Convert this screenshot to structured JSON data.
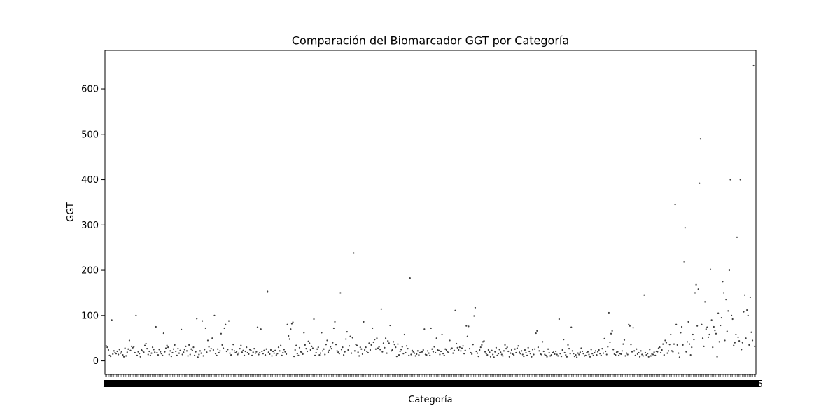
{
  "chart_data": {
    "type": "scatter",
    "title": "Comparación del Biomarcador GGT por Categoría",
    "xlabel": "Categoría",
    "ylabel": "GGT",
    "ylim": [
      -30,
      685
    ],
    "yticks": [
      0,
      100,
      200,
      300,
      400,
      500,
      600
    ],
    "ytick_labels": [
      "0",
      "100",
      "200",
      "300",
      "400",
      "500",
      "600"
    ],
    "grid": false,
    "x_category_count": 545,
    "x_first_tick_label": "2",
    "x_last_tick_label": "45",
    "marker_color": "#3d3d3d",
    "series": [
      {
        "values": [
          33,
          30,
          24,
          12,
          10,
          90,
          15,
          22,
          18,
          16,
          21,
          14,
          25,
          17,
          20,
          13,
          9,
          28,
          11,
          19,
          26,
          45,
          23,
          32,
          29,
          31,
          18,
          100,
          12,
          20,
          16,
          9,
          24,
          22,
          19,
          34,
          38,
          27,
          14,
          21,
          12,
          17,
          30,
          25,
          19,
          75,
          18,
          13,
          25,
          20,
          16,
          12,
          61,
          20,
          28,
          34,
          30,
          14,
          22,
          10,
          18,
          26,
          35,
          21,
          12,
          27,
          17,
          23,
          69,
          14,
          19,
          25,
          32,
          22,
          11,
          35,
          14,
          26,
          23,
          30,
          12,
          20,
          93,
          8,
          14,
          22,
          17,
          88,
          11,
          25,
          72,
          19,
          45,
          31,
          22,
          27,
          50,
          24,
          100,
          16,
          12,
          26,
          18,
          22,
          60,
          35,
          28,
          72,
          80,
          21,
          25,
          88,
          17,
          13,
          25,
          36,
          22,
          18,
          20,
          14,
          17,
          27,
          34,
          19,
          23,
          12,
          21,
          30,
          18,
          15,
          25,
          23,
          12,
          19,
          27,
          17,
          20,
          74,
          14,
          18,
          70,
          21,
          16,
          23,
          13,
          26,
          153,
          19,
          15,
          24,
          11,
          21,
          17,
          23,
          13,
          16,
          30,
          22,
          34,
          12,
          18,
          25,
          20,
          15,
          80,
          55,
          48,
          70,
          82,
          85,
          10,
          24,
          34,
          16,
          12,
          29,
          20,
          19,
          15,
          62,
          35,
          27,
          21,
          43,
          39,
          24,
          32,
          28,
          92,
          12,
          18,
          26,
          30,
          13,
          17,
          62,
          22,
          26,
          14,
          36,
          45,
          19,
          23,
          31,
          27,
          40,
          72,
          86,
          36,
          22,
          19,
          16,
          150,
          25,
          30,
          13,
          20,
          48,
          64,
          24,
          33,
          54,
          17,
          51,
          238,
          22,
          36,
          34,
          19,
          11,
          30,
          26,
          15,
          86,
          24,
          30,
          21,
          18,
          39,
          24,
          35,
          72,
          41,
          47,
          26,
          50,
          28,
          31,
          25,
          114,
          20,
          39,
          29,
          50,
          17,
          44,
          39,
          78,
          22,
          24,
          42,
          36,
          30,
          10,
          37,
          13,
          21,
          25,
          31,
          16,
          58,
          18,
          33,
          27,
          12,
          183,
          14,
          23,
          20,
          17,
          11,
          15,
          22,
          13,
          18,
          19,
          20,
          24,
          70,
          14,
          13,
          22,
          17,
          12,
          72,
          26,
          20,
          31,
          18,
          50,
          24,
          23,
          14,
          21,
          58,
          16,
          12,
          26,
          24,
          20,
          18,
          45,
          26,
          28,
          17,
          23,
          111,
          38,
          29,
          24,
          30,
          22,
          28,
          33,
          16,
          23,
          77,
          54,
          76,
          27,
          18,
          15,
          36,
          99,
          117,
          21,
          17,
          10,
          24,
          30,
          35,
          42,
          44,
          20,
          16,
          13,
          24,
          19,
          9,
          23,
          14,
          8,
          20,
          29,
          12,
          16,
          25,
          19,
          14,
          11,
          22,
          35,
          27,
          30,
          21,
          9,
          17,
          24,
          15,
          13,
          26,
          18,
          28,
          33,
          19,
          16,
          22,
          14,
          10,
          24,
          18,
          12,
          29,
          21,
          16,
          9,
          25,
          14,
          26,
          61,
          66,
          30,
          22,
          15,
          14,
          42,
          21,
          14,
          12,
          9,
          26,
          18,
          11,
          13,
          18,
          19,
          15,
          21,
          14,
          11,
          92,
          16,
          10,
          24,
          47,
          18,
          13,
          9,
          35,
          27,
          16,
          74,
          22,
          16,
          10,
          13,
          8,
          17,
          14,
          19,
          28,
          21,
          16,
          11,
          12,
          18,
          20,
          14,
          9,
          25,
          16,
          12,
          18,
          22,
          13,
          20,
          24,
          16,
          12,
          27,
          17,
          49,
          21,
          14,
          31,
          106,
          41,
          60,
          66,
          25,
          15,
          13,
          19,
          20,
          12,
          16,
          15,
          22,
          37,
          46,
          11,
          17,
          14,
          80,
          77,
          36,
          20,
          73,
          22,
          12,
          26,
          15,
          18,
          9,
          22,
          14,
          11,
          145,
          18,
          13,
          16,
          9,
          25,
          11,
          15,
          14,
          19,
          12,
          21,
          20,
          28,
          30,
          18,
          24,
          37,
          13,
          45,
          40,
          17,
          22,
          36,
          58,
          22,
          20,
          37,
          345,
          80,
          35,
          17,
          8,
          62,
          75,
          35,
          218,
          294,
          20,
          42,
          86,
          37,
          13,
          30,
          58,
          47,
          150,
          168,
          77,
          158,
          392,
          490,
          80,
          50,
          32,
          130,
          70,
          74,
          52,
          58,
          202,
          90,
          30,
          75,
          67,
          60,
          9,
          105,
          42,
          78,
          95,
          175,
          150,
          45,
          135,
          65,
          110,
          200,
          400,
          100,
          92,
          34,
          40,
          58,
          273,
          52,
          44,
          400,
          25,
          40,
          108,
          145,
          50,
          112,
          100,
          35,
          140,
          63,
          45,
          651,
          32
        ]
      }
    ]
  }
}
